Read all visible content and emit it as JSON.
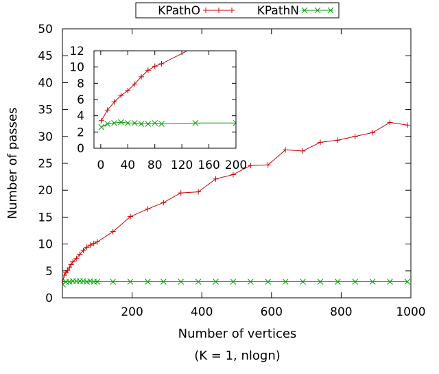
{
  "chart_data": [
    {
      "type": "line",
      "xlabel": "Number of vertices",
      "ylabel": "Number of passes",
      "caption": "(K = 1, nlogn)",
      "xlim": [
        0,
        1000
      ],
      "ylim": [
        0,
        50
      ],
      "xticks": [
        200,
        400,
        600,
        800,
        1000
      ],
      "yticks": [
        0,
        5,
        10,
        15,
        20,
        25,
        30,
        35,
        40,
        45,
        50
      ],
      "legend_position": "top-center",
      "grid": false,
      "series": [
        {
          "name": "KPathO",
          "color": "#cc0000",
          "marker": "plus",
          "x": [
            1,
            5,
            10,
            15,
            20,
            25,
            30,
            40,
            50,
            60,
            70,
            80,
            90,
            100,
            145,
            195,
            245,
            290,
            340,
            390,
            440,
            490,
            540,
            590,
            640,
            690,
            740,
            790,
            840,
            890,
            940,
            990
          ],
          "y": [
            3,
            4.2,
            4.7,
            5.1,
            5.6,
            6.2,
            6.7,
            7.3,
            8.1,
            8.8,
            9.4,
            9.8,
            10.1,
            10.4,
            12.3,
            15.1,
            16.5,
            17.7,
            19.5,
            19.7,
            22.1,
            22.9,
            24.6,
            24.7,
            27.5,
            27.3,
            28.9,
            29.3,
            30.0,
            30.7,
            32.6,
            32.1
          ]
        },
        {
          "name": "KPathN",
          "color": "#00a000",
          "marker": "cross",
          "x": [
            1,
            10,
            20,
            30,
            40,
            50,
            60,
            70,
            80,
            90,
            100,
            145,
            195,
            245,
            290,
            340,
            390,
            440,
            490,
            540,
            590,
            640,
            690,
            740,
            790,
            840,
            890,
            940,
            990
          ],
          "y": [
            2.5,
            3,
            3,
            3.1,
            3.1,
            3.1,
            3.1,
            3,
            3.1,
            3,
            3,
            3,
            3,
            3,
            3,
            3,
            3,
            3,
            3,
            3,
            3,
            3,
            3,
            3,
            3,
            3,
            3,
            3,
            3
          ]
        }
      ]
    },
    {
      "type": "line",
      "role": "inset",
      "xlim": [
        -10,
        200
      ],
      "ylim": [
        0,
        12
      ],
      "xticks": [
        0,
        40,
        80,
        120,
        160,
        200
      ],
      "yticks": [
        0,
        2,
        4,
        6,
        8,
        10,
        12
      ],
      "grid": false,
      "series": [
        {
          "name": "KPathO",
          "color": "#cc0000",
          "marker": "plus",
          "x": [
            1,
            10,
            20,
            30,
            40,
            50,
            60,
            70,
            80,
            90,
            140
          ],
          "y": [
            3.4,
            4.7,
            5.7,
            6.5,
            7.1,
            7.9,
            8.8,
            9.6,
            10.1,
            10.4,
            12.5
          ]
        },
        {
          "name": "KPathN",
          "color": "#00a000",
          "marker": "cross",
          "x": [
            1,
            10,
            20,
            30,
            40,
            50,
            60,
            70,
            80,
            90,
            140,
            200
          ],
          "y": [
            2.6,
            3.0,
            3.1,
            3.2,
            3.1,
            3.1,
            3.0,
            3.0,
            3.1,
            3.0,
            3.1,
            3.1
          ]
        }
      ]
    }
  ]
}
